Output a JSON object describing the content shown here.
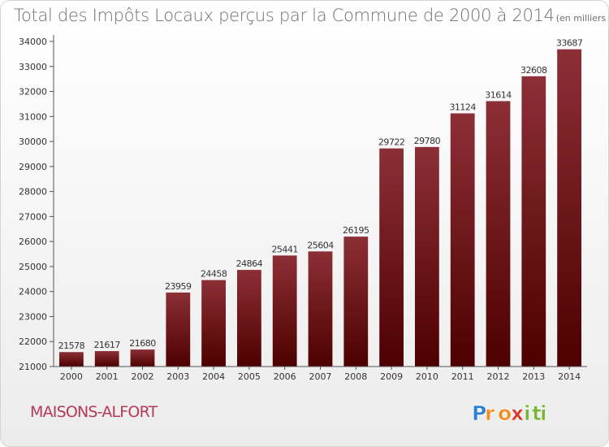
{
  "chart_data": {
    "type": "bar",
    "title": "Total des Impôts Locaux perçus par la Commune de 2000 à 2014",
    "subtitle": "(en milliers d'€)",
    "categories": [
      "2000",
      "2001",
      "2002",
      "2003",
      "2004",
      "2005",
      "2006",
      "2007",
      "2008",
      "2009",
      "2010",
      "2011",
      "2012",
      "2013",
      "2014"
    ],
    "values": [
      21578,
      21617,
      21680,
      23959,
      24458,
      24864,
      25441,
      25604,
      26195,
      29722,
      29780,
      31124,
      31614,
      32608,
      33687
    ],
    "ylim": [
      21000,
      34000
    ],
    "yticks": [
      21000,
      22000,
      23000,
      24000,
      25000,
      26000,
      27000,
      28000,
      29000,
      30000,
      31000,
      32000,
      33000,
      34000
    ],
    "grid": false,
    "data_labels": true,
    "bar_color_top": "#8c2f36",
    "bar_color_bottom": "#4d0000"
  },
  "commune": "MAISONS-ALFORT",
  "brand": {
    "name": "Proxiti",
    "letters": [
      {
        "ch": "P",
        "color": "#2f7fcf"
      },
      {
        "ch": "r",
        "color": "#f28c1c"
      },
      {
        "ch": "o",
        "color": "#f28c1c"
      },
      {
        "ch": "x",
        "color": "#d83a2c"
      },
      {
        "ch": "i",
        "color": "#7bb43b"
      },
      {
        "ch": "t",
        "color": "#7bb43b"
      },
      {
        "ch": "i",
        "color": "#7bb43b"
      }
    ]
  }
}
